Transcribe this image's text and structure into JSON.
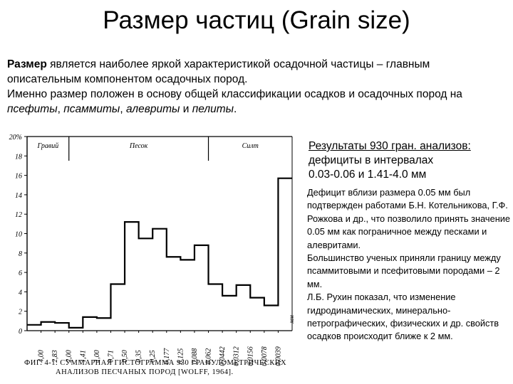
{
  "title": "Размер частиц (Grain size)",
  "intro": {
    "bold_word": "Размер",
    "line1_rest": " является наиболее яркой характеристикой осадочной частицы – главным описательным компонентом осадочных пород.",
    "line2_start": "Именно размер положен в основу общей классификации осадков и осадочных пород на ",
    "term1": "псефиты",
    "sep1": ", ",
    "term2": "псаммиты",
    "sep2": ", ",
    "term3": "алевриты",
    "and_word": " и ",
    "term4": "пелиты",
    "end": "."
  },
  "results": {
    "line1": "Результаты 930 гран. анализов:",
    "line2": "дефициты в интервалах",
    "line3": " 0.03-0.06 и 1.41-4.0 мм"
  },
  "note": {
    "p1": "Дефицит вблизи размера 0.05 мм был подтвержден работами Б.Н. Котельникова, Г.Ф. Рожкова и др., что позволило принять значение 0.05 мм как пограничное между песками и алевритами.",
    "p2": "Большинство ученых приняли границу между псаммитовыми и псефитовыми породами – 2 мм.",
    "p3": "Л.Б. Рухин показал, что изменение гидродинамических, минерально-петрографических, физических и др. свойств осадков происходит ближе к 2 мм."
  },
  "chart_data": {
    "type": "histogram",
    "y_unit": "%",
    "ylim": [
      0,
      20
    ],
    "yticks": [
      "20%",
      "18",
      "16",
      "14",
      "12",
      "10",
      "8",
      "6",
      "4",
      "2",
      "0"
    ],
    "x_unit": "мм",
    "xticks": [
      "4,00",
      "2,83",
      "2,00",
      "1,41",
      "1,00",
      "0,71",
      "0,50",
      "0,35",
      "0,25",
      "0,177",
      "0,125",
      "0,088",
      "0,062",
      "0,0442",
      "0,0312",
      "0,0156",
      "0,0078",
      "0,0039"
    ],
    "zones": [
      "Гравий",
      "Песок",
      "Силт"
    ],
    "values": [
      0.6,
      0.9,
      0.8,
      0.3,
      1.4,
      1.3,
      4.8,
      11.2,
      9.5,
      10.5,
      7.6,
      7.3,
      8.8,
      4.8,
      3.6,
      4.7,
      3.4,
      2.6,
      15.7
    ],
    "caption_line1": "ФИГ. 4-1. СУММАРНАЯ ГИСТОГРАММА 930 ГРАНУЛОМЕТРИЧЕСКИХ",
    "caption_line2": "АНАЛИЗОВ ПЕСЧАНЫХ ПОРОД [WOLFF, 1964]."
  }
}
